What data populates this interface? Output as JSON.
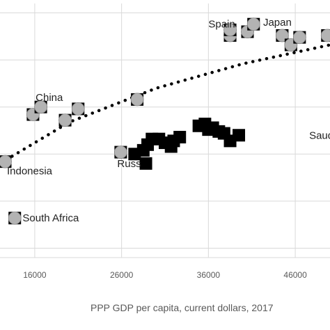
{
  "chart_data": {
    "type": "scatter",
    "title": "",
    "xlabel": "PPP GDP per capita, current dollars, 2017",
    "ylabel": "",
    "xlim": [
      12000,
      50000
    ],
    "x_ticks": [
      16000,
      26000,
      36000,
      46000
    ],
    "x_tick_labels": [
      "16000",
      "26000",
      "36000",
      "46000"
    ],
    "grid": true,
    "legend": "none",
    "colors": {
      "circle_fill": "#b3b3b3",
      "square_fill": "#000000",
      "gridline": "#d9d9d9",
      "trendline": "#000000"
    },
    "series": [
      {
        "marker": "circle-in-square",
        "points": [
          {
            "x": 12600,
            "y": 12.1
          },
          {
            "x": 15800,
            "y": 14.6
          },
          {
            "x": 16700,
            "y": 15.0
          },
          {
            "x": 19500,
            "y": 14.3
          },
          {
            "x": 21000,
            "y": 14.9
          },
          {
            "x": 25900,
            "y": 12.6
          },
          {
            "x": 27800,
            "y": 15.4
          },
          {
            "x": 38500,
            "y": 18.8
          },
          {
            "x": 38500,
            "y": 19.1
          },
          {
            "x": 40500,
            "y": 19.0
          },
          {
            "x": 41200,
            "y": 19.4
          },
          {
            "x": 44500,
            "y": 18.8
          },
          {
            "x": 45500,
            "y": 18.3
          },
          {
            "x": 46500,
            "y": 18.7
          },
          {
            "x": 49700,
            "y": 18.8
          },
          {
            "x": 13700,
            "y": 9.1
          }
        ]
      },
      {
        "marker": "square",
        "points": [
          {
            "x": 27500,
            "y": 12.5
          },
          {
            "x": 28500,
            "y": 12.7
          },
          {
            "x": 29000,
            "y": 13.0
          },
          {
            "x": 29500,
            "y": 13.3
          },
          {
            "x": 30300,
            "y": 13.3
          },
          {
            "x": 31000,
            "y": 13.1
          },
          {
            "x": 31700,
            "y": 12.9
          },
          {
            "x": 32000,
            "y": 13.2
          },
          {
            "x": 32700,
            "y": 13.4
          },
          {
            "x": 28800,
            "y": 12.0
          },
          {
            "x": 34900,
            "y": 14.0
          },
          {
            "x": 35600,
            "y": 14.1
          },
          {
            "x": 36000,
            "y": 13.8
          },
          {
            "x": 36500,
            "y": 13.9
          },
          {
            "x": 37200,
            "y": 13.7
          },
          {
            "x": 37800,
            "y": 13.6
          },
          {
            "x": 38500,
            "y": 13.2
          },
          {
            "x": 39500,
            "y": 13.5
          }
        ]
      }
    ],
    "trendline": {
      "style": "dotted",
      "points": [
        {
          "x": 12000,
          "y": 12.0
        },
        {
          "x": 20000,
          "y": 14.2
        },
        {
          "x": 30000,
          "y": 16.0
        },
        {
          "x": 40000,
          "y": 17.3
        },
        {
          "x": 50000,
          "y": 18.3
        }
      ]
    },
    "annotations": [
      {
        "text": "Spain",
        "x": 36000,
        "y": 19.4
      },
      {
        "text": "Japan",
        "x": 42300,
        "y": 19.5
      },
      {
        "text": "China",
        "x": 16100,
        "y": 15.5
      },
      {
        "text": "Saudi A",
        "x": 47600,
        "y": 13.5
      },
      {
        "text": "Indonesia",
        "x": 12800,
        "y": 11.6
      },
      {
        "text": "Russ",
        "x": 25500,
        "y": 12.0
      },
      {
        "text": "South Africa",
        "x": 14600,
        "y": 9.1
      }
    ]
  }
}
